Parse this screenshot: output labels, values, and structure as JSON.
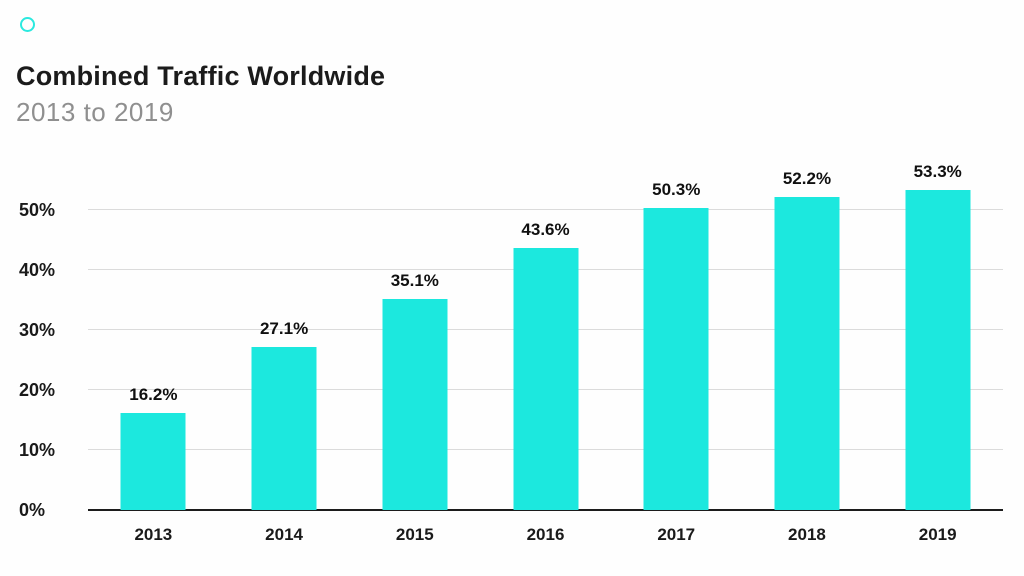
{
  "header": {
    "title": "Combined Traffic Worldwide",
    "subtitle": "2013 to 2019"
  },
  "chart_data": {
    "type": "bar",
    "title": "Combined Traffic Worldwide",
    "subtitle": "2013 to 2019",
    "categories": [
      "2013",
      "2014",
      "2015",
      "2016",
      "2017",
      "2018",
      "2019"
    ],
    "values": [
      16.2,
      27.1,
      35.1,
      43.6,
      50.3,
      52.2,
      53.3
    ],
    "data_labels": [
      "16.2%",
      "27.1%",
      "35.1%",
      "43.6%",
      "50.3%",
      "52.2%",
      "53.3%"
    ],
    "xlabel": "",
    "ylabel": "",
    "ylim": [
      0,
      60
    ],
    "y_ticks": [
      {
        "value": 0,
        "label": "0%"
      },
      {
        "value": 10,
        "label": "10%"
      },
      {
        "value": 20,
        "label": "20%"
      },
      {
        "value": 30,
        "label": "30%"
      },
      {
        "value": 40,
        "label": "40%"
      },
      {
        "value": 50,
        "label": "50%"
      }
    ],
    "grid": true,
    "legend": false,
    "bar_color": "#1CE8DE"
  },
  "colors": {
    "accent": "#1CE8DE",
    "title_text": "#1B1B1B",
    "subtitle_text": "#8F8F8F",
    "gridline": "#DBDBDB",
    "axis_line": "#1C1C1C",
    "label_text": "#101010",
    "background": "#FEFEFE"
  },
  "icons": {
    "brand_ring": "ring-icon"
  }
}
